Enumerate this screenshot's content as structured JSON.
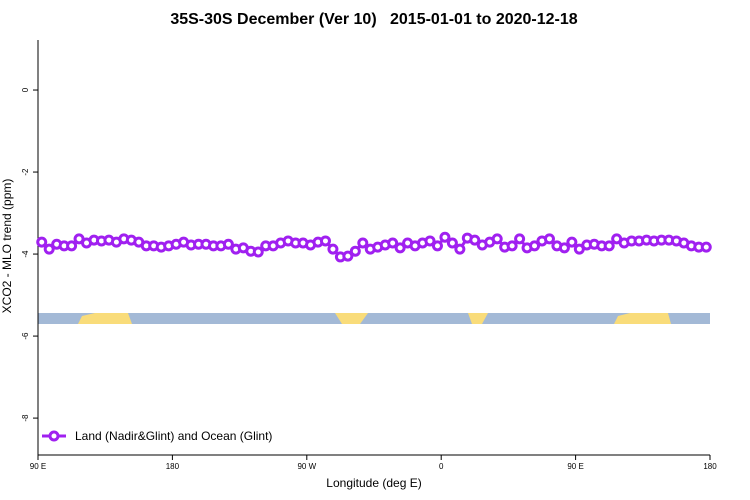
{
  "chart_data": {
    "type": "line",
    "title": "35S-30S December (Ver 10)   2015-01-01 to 2020-12-18",
    "xlabel": "Longitude (deg E)",
    "ylabel": "XCO2 - MLO trend (ppm)",
    "xlim": [
      90,
      540
    ],
    "ylim": [
      -8.9,
      1.22
    ],
    "xticks": [
      {
        "value": 90,
        "label": "90 E"
      },
      {
        "value": 180,
        "label": "180"
      },
      {
        "value": 270,
        "label": "90 W"
      },
      {
        "value": 360,
        "label": "0"
      },
      {
        "value": 450,
        "label": "90 E"
      },
      {
        "value": 540,
        "label": "180"
      }
    ],
    "yticks": [
      0,
      -2,
      -4,
      -6,
      -8
    ],
    "legend": "bottom-left",
    "x": [
      92.5,
      97.5,
      102.5,
      107.5,
      112.5,
      117.5,
      122.5,
      127.5,
      132.5,
      137.5,
      142.5,
      147.5,
      152.5,
      157.5,
      162.5,
      167.5,
      172.5,
      177.5,
      182.5,
      187.5,
      192.5,
      197.5,
      202.5,
      207.5,
      212.5,
      217.5,
      222.5,
      227.5,
      232.5,
      237.5,
      242.5,
      247.5,
      252.5,
      257.5,
      262.5,
      267.5,
      272.5,
      277.5,
      282.5,
      287.5,
      292.5,
      297.5,
      302.5,
      307.5,
      312.5,
      317.5,
      322.5,
      327.5,
      332.5,
      337.5,
      342.5,
      347.5,
      352.5,
      357.5,
      362.5,
      367.5,
      372.5,
      377.5,
      382.5,
      387.5,
      392.5,
      397.5,
      402.5,
      407.5,
      412.5,
      417.5,
      422.5,
      427.5,
      432.5,
      437.5,
      442.5,
      447.5,
      452.5,
      457.5,
      462.5,
      467.5,
      472.5,
      477.5,
      482.5,
      487.5,
      492.5,
      497.5,
      502.5,
      507.5,
      512.5,
      517.5,
      522.5,
      527.5,
      532.5,
      537.5
    ],
    "series": [
      {
        "name": "Land (Nadir&Glint) and Ocean (Glint)",
        "color": "#a020f0",
        "values": [
          -3.71,
          -3.88,
          -3.76,
          -3.8,
          -3.8,
          -3.63,
          -3.73,
          -3.66,
          -3.68,
          -3.66,
          -3.71,
          -3.63,
          -3.66,
          -3.71,
          -3.8,
          -3.8,
          -3.83,
          -3.8,
          -3.76,
          -3.71,
          -3.78,
          -3.76,
          -3.76,
          -3.8,
          -3.8,
          -3.76,
          -3.88,
          -3.85,
          -3.93,
          -3.95,
          -3.8,
          -3.8,
          -3.73,
          -3.68,
          -3.73,
          -3.73,
          -3.78,
          -3.71,
          -3.68,
          -3.88,
          -4.07,
          -4.05,
          -3.93,
          -3.73,
          -3.88,
          -3.83,
          -3.78,
          -3.73,
          -3.85,
          -3.73,
          -3.8,
          -3.73,
          -3.68,
          -3.8,
          -3.59,
          -3.73,
          -3.88,
          -3.61,
          -3.66,
          -3.78,
          -3.71,
          -3.63,
          -3.83,
          -3.8,
          -3.63,
          -3.85,
          -3.8,
          -3.68,
          -3.63,
          -3.8,
          -3.85,
          -3.71,
          -3.88,
          -3.78,
          -3.76,
          -3.8,
          -3.8,
          -3.63,
          -3.73,
          -3.68,
          -3.68,
          -3.66,
          -3.68,
          -3.66,
          -3.66,
          -3.68,
          -3.73,
          -3.8,
          -3.83,
          -3.83
        ]
      }
    ]
  }
}
